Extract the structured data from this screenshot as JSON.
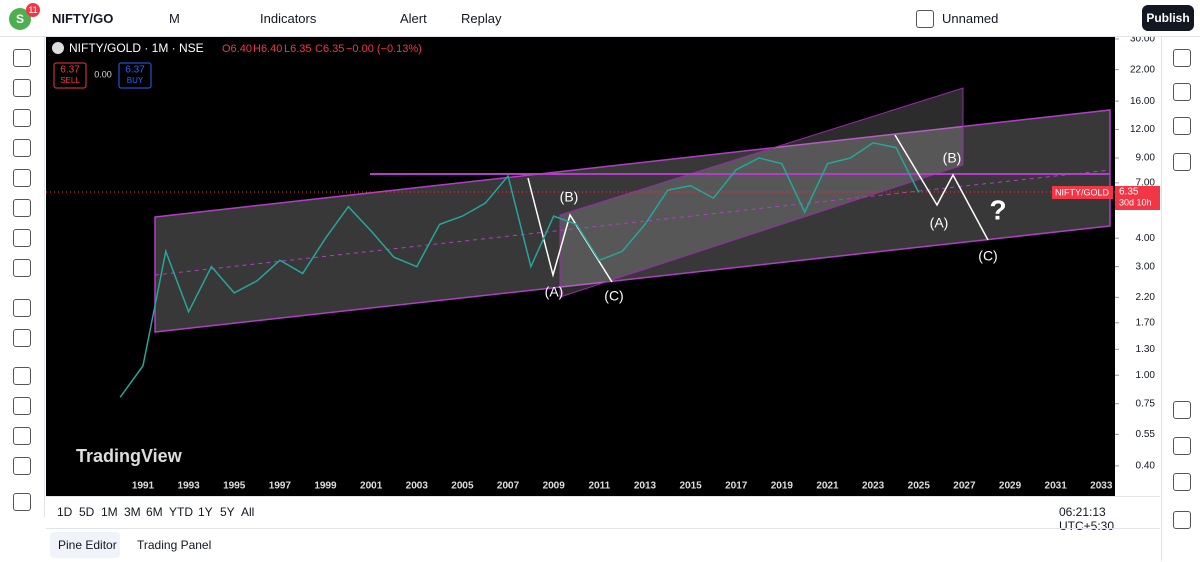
{
  "toolbar": {
    "avatar": "S",
    "badge": "11",
    "symbol": "NIFTY/GO",
    "interval": "M",
    "indicators": "Indicators",
    "alert": "Alert",
    "replay": "Replay",
    "layout_name": "Unnamed",
    "publish": "Publish"
  },
  "legend": {
    "title": "NIFTY/GOLD · 1M · NSE",
    "open": "O6.40",
    "high": "H6.40",
    "low": "L6.35",
    "close": "C6.35",
    "change": "−0.00 (−0.13%)",
    "sell_price": "6.37",
    "sell": "SELL",
    "spread": "0.00",
    "buy_price": "6.37",
    "buy": "BUY"
  },
  "price_tag": {
    "price": "6.35",
    "countdown": "30d 10h"
  },
  "watermark": "TradingView",
  "waves": [
    "(A)",
    "(B)",
    "(C)",
    "(B)",
    "(A)",
    "(C)",
    "?"
  ],
  "ranges": [
    "1D",
    "5D",
    "1M",
    "3M",
    "6M",
    "YTD",
    "1Y",
    "5Y",
    "All"
  ],
  "clock": "06:21:13 UTC+5:30",
  "tabs": [
    "Pine Editor",
    "Trading Panel"
  ],
  "chart_data": {
    "type": "line",
    "log_scale": true,
    "x": [
      1990,
      1991,
      1992,
      1993,
      1994,
      1995,
      1996,
      1997,
      1998,
      1999,
      2000,
      2001,
      2002,
      2003,
      2004,
      2005,
      2006,
      2007,
      2008,
      2009,
      2010,
      2011,
      2012,
      2013,
      2014,
      2015,
      2016,
      2017,
      2018,
      2019,
      2020,
      2021,
      2022,
      2023,
      2024,
      2025
    ],
    "series": [
      {
        "name": "NIFTY/GOLD",
        "color": "#26a69a",
        "values": [
          0.8,
          1.1,
          3.5,
          1.9,
          3.0,
          2.3,
          2.6,
          3.2,
          2.8,
          4.0,
          5.5,
          4.3,
          3.3,
          3.0,
          4.6,
          5.0,
          5.7,
          7.5,
          3.0,
          5.0,
          4.6,
          3.2,
          3.5,
          4.6,
          6.5,
          6.8,
          6.0,
          8.0,
          9.0,
          8.5,
          5.2,
          8.5,
          9.0,
          10.5,
          10.0,
          6.35
        ]
      }
    ],
    "xlim": [
      1986.75,
      2033.6
    ],
    "xticks": [
      1991,
      1993,
      1995,
      1997,
      1999,
      2001,
      2003,
      2005,
      2007,
      2009,
      2011,
      2013,
      2015,
      2017,
      2019,
      2021,
      2023,
      2025,
      2027,
      2029,
      2031,
      2033
    ],
    "ylim": [
      0.333,
      30.6
    ],
    "yticks": [
      {
        "value": 30,
        "label": "30.00"
      },
      {
        "value": 22,
        "label": "22.00"
      },
      {
        "value": 16,
        "label": "16.00"
      },
      {
        "value": 12,
        "label": "12.00"
      },
      {
        "value": 9,
        "label": "9.00"
      },
      {
        "value": 7,
        "label": "7.00"
      },
      {
        "value": 4,
        "label": "4.00"
      },
      {
        "value": 3,
        "label": "3.00"
      },
      {
        "value": 2.2,
        "label": "2.20"
      },
      {
        "value": 1.7,
        "label": "1.70"
      },
      {
        "value": 1.3,
        "label": "1.30"
      },
      {
        "value": 1,
        "label": "1.00"
      },
      {
        "value": 0.75,
        "label": "0.75"
      },
      {
        "value": 0.55,
        "label": "0.55"
      },
      {
        "value": 0.4,
        "label": "0.40"
      }
    ]
  }
}
